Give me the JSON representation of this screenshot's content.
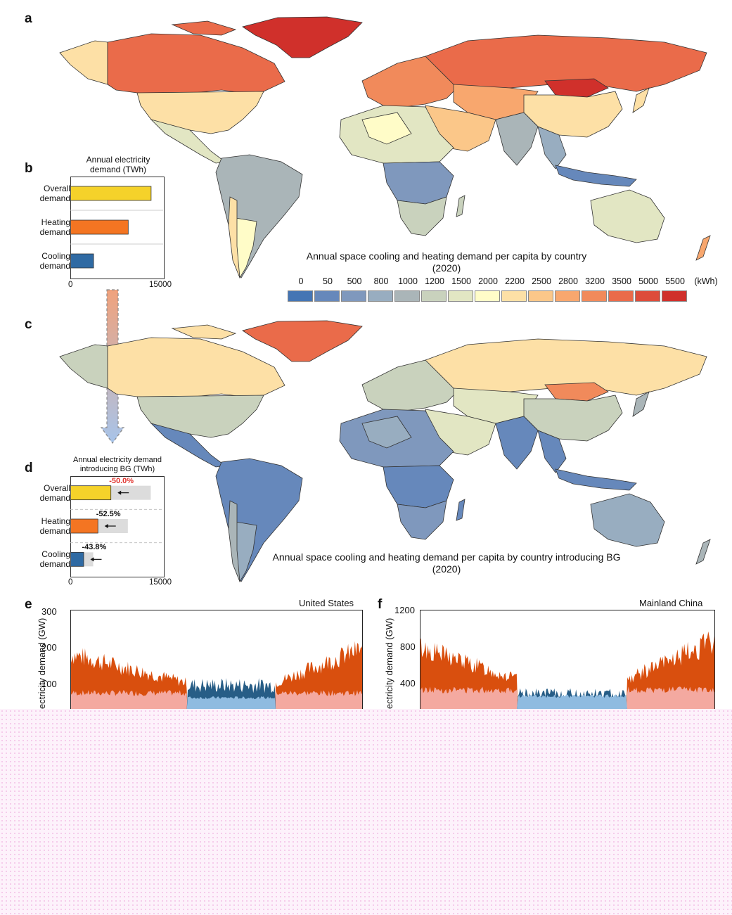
{
  "panels": {
    "a": "a",
    "b": "b",
    "c": "c",
    "d": "d",
    "e": "e",
    "f": "f"
  },
  "map_a": {
    "title_line1": "Annual space cooling and heating demand per capita by country",
    "title_line2": "(2020)"
  },
  "map_c": {
    "title_line1": "Annual space cooling and heating demand per capita by country introducing BG",
    "title_line2": "(2020)"
  },
  "legend": {
    "labels": [
      "0",
      "50",
      "500",
      "800",
      "1000",
      "1200",
      "1500",
      "2000",
      "2200",
      "2500",
      "2800",
      "3200",
      "3500",
      "5000",
      "5500"
    ],
    "unit": "(kWh)",
    "colors": [
      "#4575b4",
      "#6688bb",
      "#7f98bd",
      "#98adc0",
      "#aab5b8",
      "#c9d2bd",
      "#e2e6c3",
      "#fffcc8",
      "#fde0a6",
      "#fbc789",
      "#f8a76e",
      "#f18a5b",
      "#ea6b4a",
      "#dd4c3a",
      "#d0302b"
    ]
  },
  "chart_data": [
    {
      "type": "bar",
      "panel": "b",
      "title_line1": "Annual electricity",
      "title_line2": "demand (TWh)",
      "categories": [
        [
          "Overall",
          "demand"
        ],
        [
          "Heating",
          "demand"
        ],
        [
          "Cooling",
          "demand"
        ]
      ],
      "values": [
        13000,
        9300,
        3700
      ],
      "colors": [
        "#f5d22a",
        "#f47522",
        "#2f6aa3"
      ],
      "xlim": [
        0,
        15000
      ],
      "ticks": [
        "0",
        "15000"
      ]
    },
    {
      "type": "bar",
      "panel": "d",
      "title_line1": "Annual electricity demand",
      "title_line2": "introducing BG (TWh)",
      "categories": [
        [
          "Overall",
          "demand"
        ],
        [
          "Heating",
          "demand"
        ],
        [
          "Cooling",
          "demand"
        ]
      ],
      "values": [
        6500,
        4400,
        2100
      ],
      "baseline_values": [
        13000,
        9300,
        3700
      ],
      "changes": [
        "-50.0%",
        "-52.5%",
        "-43.8%"
      ],
      "change_colors": [
        "#e0312b",
        "#111111",
        "#111111"
      ],
      "colors": [
        "#f5d22a",
        "#f47522",
        "#2f6aa3"
      ],
      "xlim": [
        0,
        15000
      ],
      "ticks": [
        "0",
        "15000"
      ]
    },
    {
      "type": "area",
      "panel": "e",
      "title": "United States",
      "ylabel": "ectricity demand (GW)",
      "yticks": [
        "300",
        "200",
        "100"
      ],
      "ylim": [
        0,
        300
      ],
      "series": [
        {
          "name": "",
          "color": "#d94f0e"
        },
        {
          "name": "",
          "color": "#f4a9a0"
        },
        {
          "name": "",
          "color": "#275d86"
        },
        {
          "name": "",
          "color": "#8fbbe0"
        }
      ]
    },
    {
      "type": "area",
      "panel": "f",
      "title": "Mainland China",
      "ylabel": "ectricity demand (GW)",
      "yticks": [
        "1200",
        "800",
        "400"
      ],
      "ylim": [
        0,
        1200
      ],
      "series": [
        {
          "name": "",
          "color": "#d94f0e"
        },
        {
          "name": "",
          "color": "#f4a9a0"
        },
        {
          "name": "",
          "color": "#275d86"
        },
        {
          "name": "",
          "color": "#8fbbe0"
        }
      ]
    }
  ]
}
